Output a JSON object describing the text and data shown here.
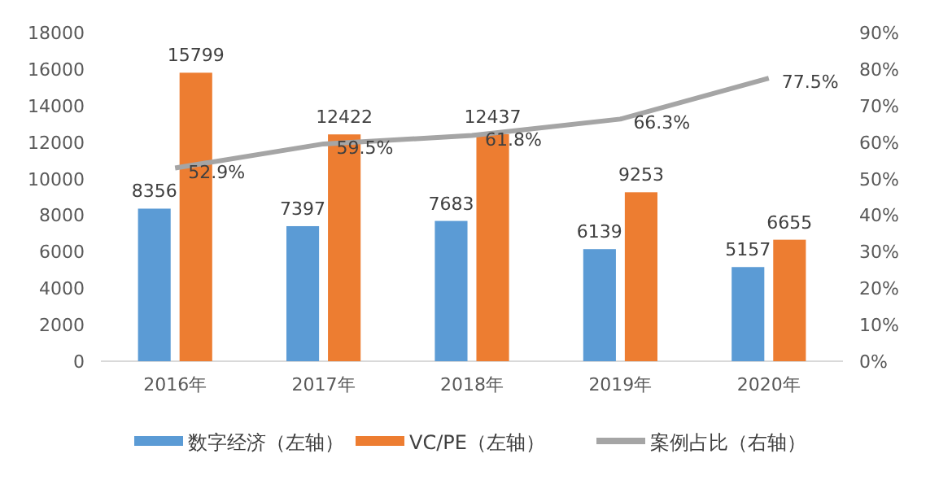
{
  "chart_data": {
    "type": "bar",
    "categories": [
      "2016年",
      "2017年",
      "2018年",
      "2019年",
      "2020年"
    ],
    "series": [
      {
        "name": "数字经济（左轴）",
        "color": "#5b9bd5",
        "values": [
          8356,
          7397,
          7683,
          6139,
          5157
        ],
        "value_labels": [
          "8356",
          "7397",
          "7683",
          "6139",
          "5157"
        ]
      },
      {
        "name": "VC/PE（左轴）",
        "color": "#ed7d31",
        "values": [
          15799,
          12422,
          12437,
          9253,
          6655
        ],
        "value_labels": [
          "15799",
          "12422",
          "12437",
          "9253",
          "6655"
        ]
      },
      {
        "name": "案例占比（右轴）",
        "type": "line",
        "axis": "y2",
        "color": "#a5a5a5",
        "values": [
          52.9,
          59.5,
          61.8,
          66.3,
          77.5
        ],
        "value_labels": [
          "52.9%",
          "59.5%",
          "61.8%",
          "66.3%",
          "77.5%"
        ]
      }
    ],
    "ylim": [
      0,
      18000
    ],
    "yticks": [
      0,
      2000,
      4000,
      6000,
      8000,
      10000,
      12000,
      14000,
      16000,
      18000
    ],
    "y2lim": [
      0,
      90
    ],
    "y2ticks": [
      {
        "value": 0,
        "label": "0%"
      },
      {
        "value": 10,
        "label": "10%"
      },
      {
        "value": 20,
        "label": "20%"
      },
      {
        "value": 30,
        "label": "30%"
      },
      {
        "value": 40,
        "label": "40%"
      },
      {
        "value": 50,
        "label": "50%"
      },
      {
        "value": 60,
        "label": "60%"
      },
      {
        "value": 70,
        "label": "70%"
      },
      {
        "value": 80,
        "label": "80%"
      },
      {
        "value": 90,
        "label": "90%"
      }
    ],
    "grid": false,
    "legend": "bottom",
    "marker": "none"
  }
}
